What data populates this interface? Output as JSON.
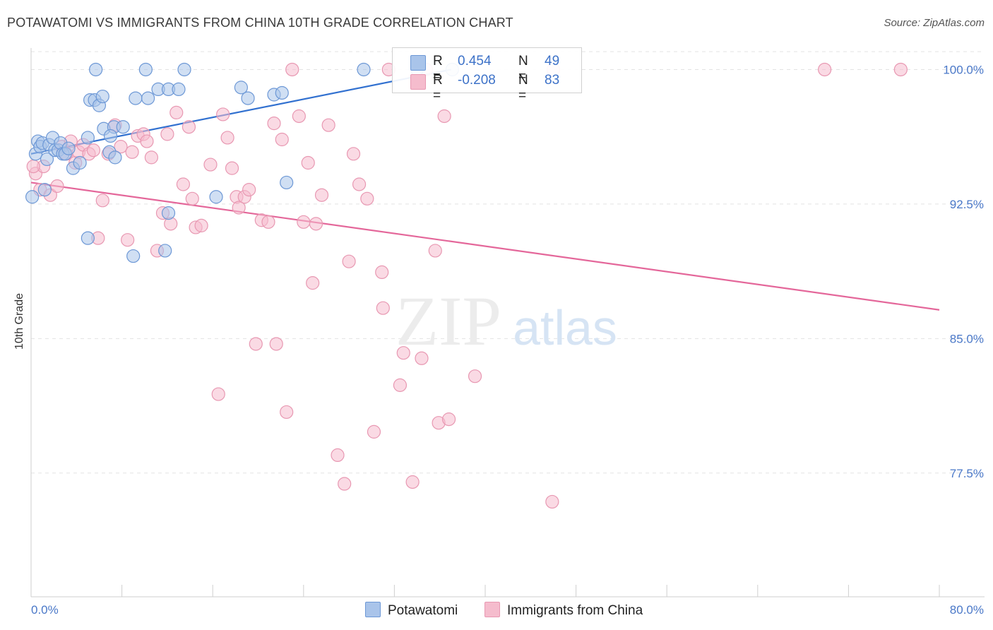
{
  "title": "POTAWATOMI VS IMMIGRANTS FROM CHINA 10TH GRADE CORRELATION CHART",
  "source": "Source: ZipAtlas.com",
  "watermark": {
    "zip": "ZIP",
    "atlas": "atlas"
  },
  "legend_top": [
    {
      "r_label": "R =",
      "r_value": "0.454",
      "n_label": "N =",
      "n_value": "49"
    },
    {
      "r_label": "R =",
      "r_value": "-0.208",
      "n_label": "N =",
      "n_value": "83"
    }
  ],
  "legend_bottom": [
    "Potawatomi",
    "Immigrants from China"
  ],
  "colors": {
    "blue_fill": "#a9c4ea",
    "blue_stroke": "#6d98d6",
    "blue_line": "#3271d0",
    "pink_fill": "#f5bccd",
    "pink_stroke": "#e898b2",
    "pink_line": "#e4679a",
    "tick_text": "#4a78c8",
    "grid": "#e3e3e3"
  },
  "chart_data": {
    "type": "scatter",
    "title": "POTAWATOMI VS IMMIGRANTS FROM CHINA 10TH GRADE CORRELATION CHART",
    "xlabel": "",
    "ylabel": "10th Grade",
    "xlim": [
      0,
      80
    ],
    "ylim": [
      70.6,
      101.2
    ],
    "x_tick_labels": [
      "0.0%",
      "80.0%"
    ],
    "y_ticks": [
      {
        "value": 100.0,
        "label": "100.0%"
      },
      {
        "value": 92.5,
        "label": "92.5%"
      },
      {
        "value": 85.0,
        "label": "85.0%"
      },
      {
        "value": 77.5,
        "label": "77.5%"
      }
    ],
    "series": [
      {
        "name": "Potawatomi",
        "r": 0.454,
        "n": 49,
        "trend": {
          "x": [
            0.0,
            37.0
          ],
          "y": [
            95.3,
            100.0
          ]
        },
        "points": [
          [
            0.1,
            92.9
          ],
          [
            0.4,
            95.3
          ],
          [
            0.6,
            96.0
          ],
          [
            0.8,
            95.7
          ],
          [
            1.0,
            95.9
          ],
          [
            1.2,
            93.3
          ],
          [
            1.4,
            95.0
          ],
          [
            1.6,
            95.8
          ],
          [
            1.9,
            96.2
          ],
          [
            2.1,
            95.5
          ],
          [
            2.4,
            95.5
          ],
          [
            2.6,
            95.9
          ],
          [
            2.8,
            95.3
          ],
          [
            3.0,
            95.3
          ],
          [
            3.3,
            95.6
          ],
          [
            3.7,
            94.5
          ],
          [
            4.3,
            94.8
          ],
          [
            5.0,
            96.2
          ],
          [
            5.2,
            98.3
          ],
          [
            5.6,
            98.3
          ],
          [
            5.0,
            90.6
          ],
          [
            6.0,
            98.0
          ],
          [
            6.3,
            98.5
          ],
          [
            6.4,
            96.7
          ],
          [
            7.3,
            96.8
          ],
          [
            6.9,
            95.4
          ],
          [
            7.4,
            95.1
          ],
          [
            7.0,
            96.3
          ],
          [
            8.1,
            96.8
          ],
          [
            9.0,
            89.6
          ],
          [
            9.2,
            98.4
          ],
          [
            10.3,
            98.4
          ],
          [
            11.2,
            98.9
          ],
          [
            10.1,
            100.0
          ],
          [
            12.1,
            98.9
          ],
          [
            13.0,
            98.9
          ],
          [
            11.8,
            89.9
          ],
          [
            12.1,
            92.0
          ],
          [
            13.5,
            100.0
          ],
          [
            16.3,
            92.9
          ],
          [
            18.5,
            99.0
          ],
          [
            19.1,
            98.4
          ],
          [
            21.4,
            98.6
          ],
          [
            22.1,
            98.7
          ],
          [
            22.5,
            93.7
          ],
          [
            29.3,
            100.0
          ],
          [
            34.0,
            100.0
          ],
          [
            37.1,
            100.0
          ],
          [
            5.7,
            100.0
          ]
        ]
      },
      {
        "name": "Immigrants from China",
        "r": -0.208,
        "n": 83,
        "trend": {
          "x": [
            0.0,
            80.0
          ],
          "y": [
            93.7,
            86.6
          ]
        },
        "points": [
          [
            0.4,
            94.2
          ],
          [
            0.8,
            93.3
          ],
          [
            1.1,
            94.6
          ],
          [
            1.7,
            93.0
          ],
          [
            2.3,
            93.5
          ],
          [
            2.7,
            95.7
          ],
          [
            3.1,
            95.3
          ],
          [
            3.5,
            96.0
          ],
          [
            3.9,
            94.8
          ],
          [
            4.2,
            95.4
          ],
          [
            4.6,
            95.8
          ],
          [
            5.1,
            95.3
          ],
          [
            5.5,
            95.5
          ],
          [
            5.9,
            90.6
          ],
          [
            6.3,
            92.7
          ],
          [
            6.8,
            95.3
          ],
          [
            7.4,
            96.9
          ],
          [
            7.9,
            95.7
          ],
          [
            8.5,
            90.5
          ],
          [
            8.9,
            95.4
          ],
          [
            9.4,
            96.3
          ],
          [
            9.9,
            96.4
          ],
          [
            10.2,
            96.0
          ],
          [
            10.6,
            95.1
          ],
          [
            11.1,
            89.9
          ],
          [
            11.6,
            92.0
          ],
          [
            12.0,
            96.4
          ],
          [
            12.3,
            91.4
          ],
          [
            12.8,
            97.6
          ],
          [
            13.4,
            93.6
          ],
          [
            13.9,
            96.8
          ],
          [
            14.2,
            92.8
          ],
          [
            14.5,
            91.2
          ],
          [
            15.0,
            91.3
          ],
          [
            15.8,
            94.7
          ],
          [
            16.5,
            81.9
          ],
          [
            16.9,
            97.5
          ],
          [
            17.3,
            96.2
          ],
          [
            17.7,
            94.5
          ],
          [
            18.1,
            92.9
          ],
          [
            18.3,
            92.3
          ],
          [
            18.8,
            92.9
          ],
          [
            19.2,
            93.3
          ],
          [
            19.8,
            84.7
          ],
          [
            20.3,
            91.6
          ],
          [
            20.9,
            91.5
          ],
          [
            21.4,
            97.0
          ],
          [
            21.6,
            84.7
          ],
          [
            22.1,
            96.1
          ],
          [
            22.5,
            80.9
          ],
          [
            23.0,
            100.0
          ],
          [
            23.6,
            97.4
          ],
          [
            24.0,
            91.5
          ],
          [
            24.4,
            94.8
          ],
          [
            24.8,
            88.1
          ],
          [
            25.1,
            91.4
          ],
          [
            25.6,
            93.0
          ],
          [
            26.2,
            96.9
          ],
          [
            27.0,
            78.5
          ],
          [
            27.6,
            76.9
          ],
          [
            28.0,
            89.3
          ],
          [
            28.4,
            95.3
          ],
          [
            28.9,
            93.6
          ],
          [
            29.6,
            92.8
          ],
          [
            30.2,
            79.8
          ],
          [
            30.9,
            88.7
          ],
          [
            31.0,
            86.7
          ],
          [
            31.5,
            100.0
          ],
          [
            32.5,
            82.4
          ],
          [
            32.8,
            84.2
          ],
          [
            33.6,
            77.0
          ],
          [
            34.4,
            83.9
          ],
          [
            34.8,
            100.0
          ],
          [
            35.6,
            89.9
          ],
          [
            35.9,
            80.3
          ],
          [
            36.4,
            97.4
          ],
          [
            36.8,
            80.5
          ],
          [
            39.1,
            82.9
          ],
          [
            46.0,
            100.0
          ],
          [
            45.9,
            75.9
          ],
          [
            69.9,
            100.0
          ],
          [
            76.6,
            100.0
          ],
          [
            0.2,
            94.6
          ]
        ]
      }
    ]
  }
}
